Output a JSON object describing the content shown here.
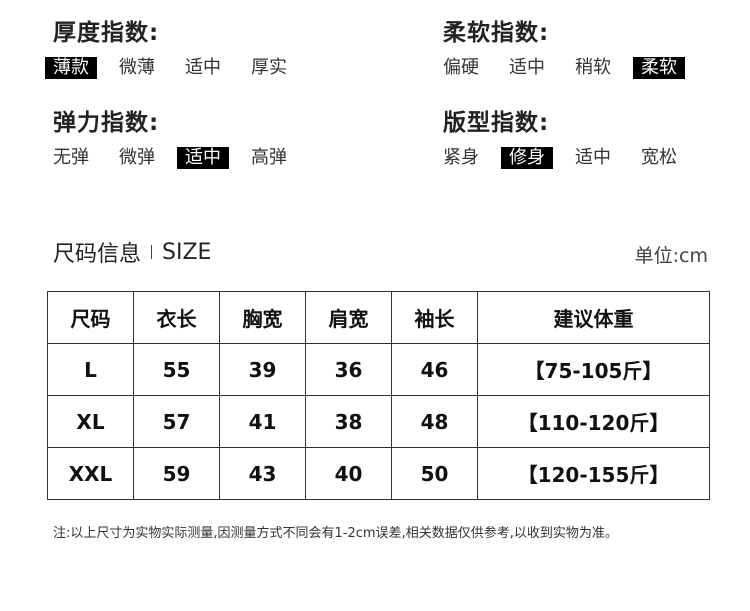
{
  "indices": [
    {
      "title": "厚度指数:",
      "options": [
        "薄款",
        "微薄",
        "适中",
        "厚实"
      ],
      "selected": "薄款"
    },
    {
      "title": "柔软指数:",
      "options": [
        "偏硬",
        "适中",
        "稍软",
        "柔软"
      ],
      "selected": "柔软"
    },
    {
      "title": "弹力指数:",
      "options": [
        "无弹",
        "微弹",
        "适中",
        "高弹"
      ],
      "selected": "适中"
    },
    {
      "title": "版型指数:",
      "options": [
        "紧身",
        "修身",
        "适中",
        "宽松"
      ],
      "selected": "修身"
    }
  ],
  "size_section": {
    "title": "尺码信息",
    "title_en": "SIZE",
    "unit": "单位:cm"
  },
  "table": {
    "headers": [
      "尺码",
      "衣长",
      "胸宽",
      "肩宽",
      "袖长",
      "建议体重"
    ],
    "rows": [
      [
        "L",
        "55",
        "39",
        "36",
        "46",
        "【75-105斤】"
      ],
      [
        "XL",
        "57",
        "41",
        "38",
        "48",
        "【110-120斤】"
      ],
      [
        "XXL",
        "59",
        "43",
        "40",
        "50",
        "【120-155斤】"
      ]
    ]
  },
  "note": "注:以上尺寸为实物实际测量,因测量方式不同会有1-2cm误差,相关数据仅供参考,以收到实物为准。"
}
